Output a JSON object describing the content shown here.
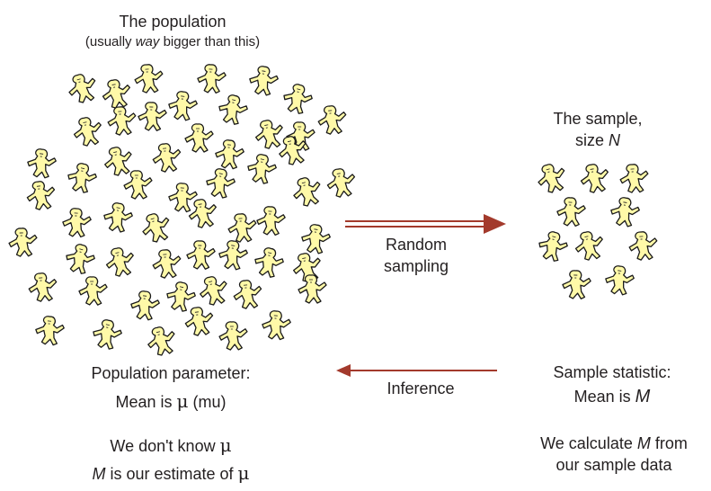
{
  "population": {
    "title": "The population",
    "subtitle_before": "(usually ",
    "subtitle_emph": "way",
    "subtitle_after": " bigger than this)"
  },
  "sample": {
    "title_line1": "The sample,",
    "title_line2_before": "size ",
    "title_line2_symbol": "N"
  },
  "arrows": {
    "random_sampling_line1": "Random",
    "random_sampling_line2": "sampling",
    "inference": "Inference"
  },
  "parameter": {
    "heading": "Population parameter:",
    "mean_before": "Mean is ",
    "mean_symbol": "μ",
    "mean_after": "  (mu)",
    "unknown_before": "We don't know ",
    "unknown_symbol": "μ",
    "estimate_symbol": "M",
    "estimate_middle": " is our estimate of ",
    "estimate_mu": "μ"
  },
  "statistic": {
    "heading": "Sample statistic:",
    "mean_before": "Mean is ",
    "mean_symbol": "M",
    "calc_before": "We calculate ",
    "calc_symbol": "M",
    "calc_after": " from",
    "calc_line2": "our sample data"
  },
  "colors": {
    "figure_fill": "#fff9a8",
    "figure_stroke": "#1a1a1a",
    "arrow": "#a33a2c",
    "text": "#231f20"
  }
}
